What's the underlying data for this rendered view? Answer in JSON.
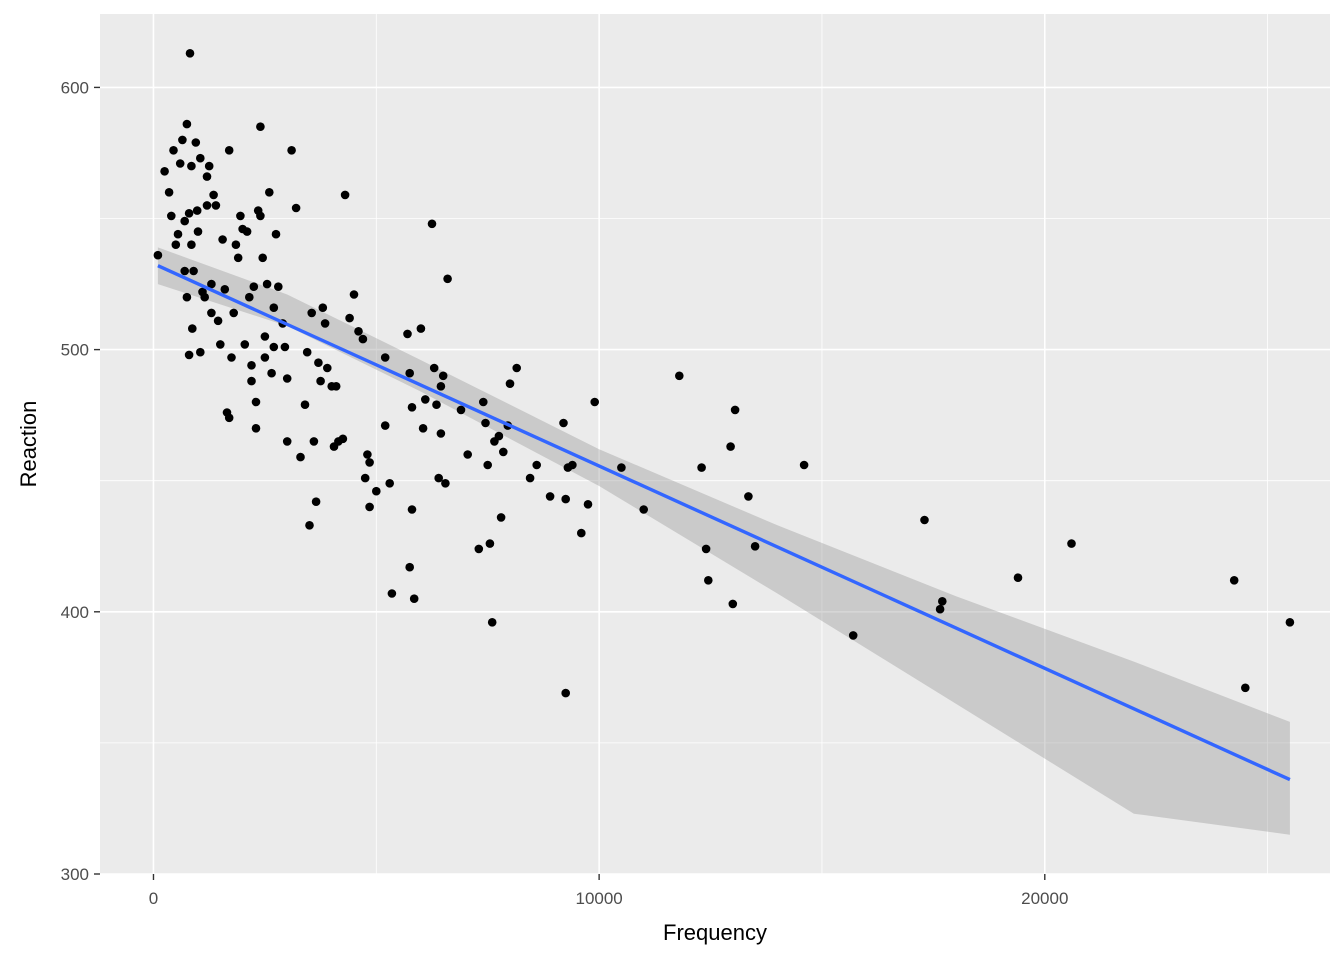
{
  "chart_data": {
    "type": "scatter",
    "title": "",
    "xlabel": "Frequency",
    "ylabel": "Reaction",
    "xlim": [
      -1200,
      26400
    ],
    "ylim": [
      300,
      628
    ],
    "x_ticks": [
      0,
      10000,
      20000
    ],
    "x_tick_labels": [
      "0",
      "10000",
      "20000"
    ],
    "y_ticks": [
      300,
      400,
      500,
      600
    ],
    "y_tick_labels": [
      "300",
      "400",
      "500",
      "600"
    ],
    "grid": true,
    "legend": "none",
    "colors": {
      "panel": "#ebebeb",
      "grid": "#ffffff",
      "point": "#000000",
      "line": "#3366ff",
      "band": "#999999"
    },
    "trend_line": {
      "method": "lm",
      "x": [
        100,
        25500
      ],
      "y": [
        532,
        336
      ],
      "confidence_band": {
        "x": [
          100,
          3000,
          6000,
          10000,
          14000,
          18000,
          22000,
          25500
        ],
        "lower": [
          525,
          509,
          484,
          448,
          407,
          365,
          323,
          315
        ],
        "upper": [
          539,
          521,
          496,
          462,
          433,
          406,
          381,
          358
        ]
      }
    },
    "points": [
      [
        100,
        536
      ],
      [
        250,
        568
      ],
      [
        350,
        560
      ],
      [
        400,
        551
      ],
      [
        450,
        576
      ],
      [
        500,
        540
      ],
      [
        550,
        544
      ],
      [
        600,
        571
      ],
      [
        650,
        580
      ],
      [
        700,
        530
      ],
      [
        700,
        549
      ],
      [
        750,
        586
      ],
      [
        750,
        520
      ],
      [
        800,
        552
      ],
      [
        800,
        498
      ],
      [
        820,
        613
      ],
      [
        850,
        570
      ],
      [
        850,
        540
      ],
      [
        870,
        508
      ],
      [
        900,
        530
      ],
      [
        950,
        579
      ],
      [
        980,
        553
      ],
      [
        1000,
        545
      ],
      [
        1050,
        499
      ],
      [
        1050,
        573
      ],
      [
        1100,
        522
      ],
      [
        1150,
        520
      ],
      [
        1200,
        566
      ],
      [
        1200,
        555
      ],
      [
        1250,
        570
      ],
      [
        1300,
        525
      ],
      [
        1300,
        514
      ],
      [
        1350,
        559
      ],
      [
        1400,
        555
      ],
      [
        1450,
        511
      ],
      [
        1500,
        502
      ],
      [
        1550,
        542
      ],
      [
        1600,
        523
      ],
      [
        1650,
        476
      ],
      [
        1700,
        576
      ],
      [
        1700,
        474
      ],
      [
        1750,
        497
      ],
      [
        1800,
        514
      ],
      [
        1850,
        540
      ],
      [
        1900,
        535
      ],
      [
        1950,
        551
      ],
      [
        2000,
        546
      ],
      [
        2050,
        502
      ],
      [
        2100,
        545
      ],
      [
        2150,
        520
      ],
      [
        2200,
        488
      ],
      [
        2200,
        494
      ],
      [
        2250,
        524
      ],
      [
        2300,
        480
      ],
      [
        2300,
        470
      ],
      [
        2350,
        553
      ],
      [
        2400,
        585
      ],
      [
        2400,
        551
      ],
      [
        2450,
        535
      ],
      [
        2500,
        505
      ],
      [
        2500,
        497
      ],
      [
        2550,
        525
      ],
      [
        2600,
        560
      ],
      [
        2650,
        491
      ],
      [
        2700,
        516
      ],
      [
        2700,
        501
      ],
      [
        2750,
        544
      ],
      [
        2800,
        524
      ],
      [
        2900,
        510
      ],
      [
        2950,
        501
      ],
      [
        3000,
        489
      ],
      [
        3000,
        465
      ],
      [
        3100,
        576
      ],
      [
        3200,
        554
      ],
      [
        3300,
        459
      ],
      [
        3400,
        479
      ],
      [
        3450,
        499
      ],
      [
        3500,
        433
      ],
      [
        3550,
        514
      ],
      [
        3600,
        465
      ],
      [
        3650,
        442
      ],
      [
        3700,
        495
      ],
      [
        3750,
        488
      ],
      [
        3800,
        516
      ],
      [
        3850,
        510
      ],
      [
        3900,
        493
      ],
      [
        4000,
        486
      ],
      [
        4050,
        463
      ],
      [
        4100,
        486
      ],
      [
        4150,
        465
      ],
      [
        4250,
        466
      ],
      [
        4300,
        559
      ],
      [
        4400,
        512
      ],
      [
        4500,
        521
      ],
      [
        4600,
        507
      ],
      [
        4700,
        504
      ],
      [
        4750,
        451
      ],
      [
        4800,
        460
      ],
      [
        4850,
        457
      ],
      [
        4850,
        440
      ],
      [
        5000,
        446
      ],
      [
        5200,
        497
      ],
      [
        5200,
        471
      ],
      [
        5300,
        449
      ],
      [
        5350,
        407
      ],
      [
        5700,
        506
      ],
      [
        5750,
        491
      ],
      [
        5750,
        417
      ],
      [
        5800,
        439
      ],
      [
        5800,
        478
      ],
      [
        5850,
        405
      ],
      [
        6000,
        508
      ],
      [
        6050,
        470
      ],
      [
        6100,
        481
      ],
      [
        6250,
        548
      ],
      [
        6300,
        493
      ],
      [
        6350,
        479
      ],
      [
        6400,
        451
      ],
      [
        6450,
        468
      ],
      [
        6450,
        486
      ],
      [
        6500,
        490
      ],
      [
        6550,
        449
      ],
      [
        6600,
        527
      ],
      [
        6900,
        477
      ],
      [
        7050,
        460
      ],
      [
        7300,
        424
      ],
      [
        7400,
        480
      ],
      [
        7450,
        472
      ],
      [
        7500,
        456
      ],
      [
        7550,
        426
      ],
      [
        7600,
        396
      ],
      [
        7650,
        465
      ],
      [
        7750,
        467
      ],
      [
        7800,
        436
      ],
      [
        7850,
        461
      ],
      [
        7950,
        471
      ],
      [
        8000,
        487
      ],
      [
        8150,
        493
      ],
      [
        8450,
        451
      ],
      [
        8600,
        456
      ],
      [
        8900,
        444
      ],
      [
        9200,
        472
      ],
      [
        9250,
        443
      ],
      [
        9250,
        369
      ],
      [
        9300,
        455
      ],
      [
        9400,
        456
      ],
      [
        9600,
        430
      ],
      [
        9750,
        441
      ],
      [
        9900,
        480
      ],
      [
        10500,
        455
      ],
      [
        11000,
        439
      ],
      [
        11800,
        490
      ],
      [
        12300,
        455
      ],
      [
        12400,
        424
      ],
      [
        12450,
        412
      ],
      [
        12950,
        463
      ],
      [
        13000,
        403
      ],
      [
        13050,
        477
      ],
      [
        13350,
        444
      ],
      [
        13500,
        425
      ],
      [
        14600,
        456
      ],
      [
        15700,
        391
      ],
      [
        17300,
        435
      ],
      [
        17650,
        401
      ],
      [
        17700,
        404
      ],
      [
        19400,
        413
      ],
      [
        20600,
        426
      ],
      [
        24250,
        412
      ],
      [
        24500,
        371
      ],
      [
        25500,
        396
      ]
    ]
  }
}
